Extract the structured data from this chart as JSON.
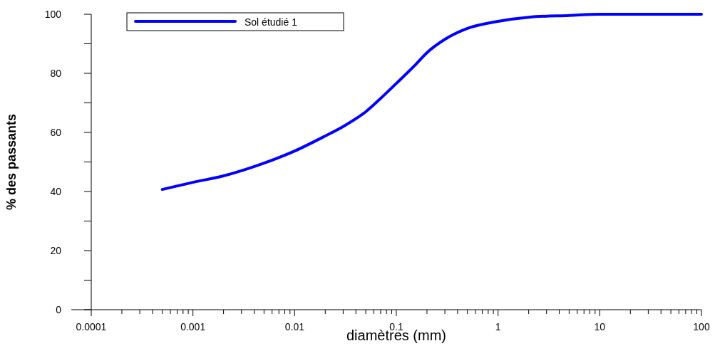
{
  "chart_data": {
    "type": "line",
    "xlabel": "diamètres (mm)",
    "ylabel": "% des passants",
    "log": "x",
    "xlim": [
      0.0001,
      100
    ],
    "xticks": [
      0.0001,
      {
        "value": 0.0002,
        "label": null
      },
      {
        "value": 0.0003,
        "label": null
      },
      {
        "value": 0.0004,
        "label": null
      },
      {
        "value": 0.0005,
        "label": null
      },
      {
        "value": 0.0006,
        "label": null
      },
      {
        "value": 0.0007,
        "label": null
      },
      {
        "value": 0.0008,
        "label": null
      },
      {
        "value": 0.0009,
        "label": null
      },
      0.001,
      {
        "value": 0.002,
        "label": null
      },
      {
        "value": 0.003,
        "label": null
      },
      {
        "value": 0.004,
        "label": null
      },
      {
        "value": 0.005,
        "label": null
      },
      {
        "value": 0.006,
        "label": null
      },
      {
        "value": 0.007,
        "label": null
      },
      {
        "value": 0.008,
        "label": null
      },
      {
        "value": 0.009,
        "label": null
      },
      0.01,
      {
        "value": 0.02,
        "label": null
      },
      {
        "value": 0.03,
        "label": null
      },
      {
        "value": 0.04,
        "label": null
      },
      {
        "value": 0.05,
        "label": null
      },
      {
        "value": 0.06,
        "label": null
      },
      {
        "value": 0.07,
        "label": null
      },
      {
        "value": 0.08,
        "label": null
      },
      {
        "value": 0.09,
        "label": null
      },
      0.1,
      {
        "value": 0.2,
        "label": null
      },
      {
        "value": 0.3,
        "label": null
      },
      {
        "value": 0.4,
        "label": null
      },
      {
        "value": 0.5,
        "label": null
      },
      {
        "value": 0.6,
        "label": null
      },
      {
        "value": 0.7,
        "label": null
      },
      {
        "value": 0.8,
        "label": null
      },
      {
        "value": 0.9,
        "label": null
      },
      1,
      {
        "value": 2,
        "label": null
      },
      {
        "value": 3,
        "label": null
      },
      {
        "value": 4,
        "label": null
      },
      {
        "value": 5,
        "label": null
      },
      {
        "value": 6,
        "label": null
      },
      {
        "value": 7,
        "label": null
      },
      {
        "value": 8,
        "label": null
      },
      {
        "value": 9,
        "label": null
      },
      10,
      {
        "value": 20,
        "label": null
      },
      {
        "value": 30,
        "label": null
      },
      {
        "value": 40,
        "label": null
      },
      {
        "value": 50,
        "label": null
      },
      {
        "value": 60,
        "label": null
      },
      {
        "value": 70,
        "label": null
      },
      {
        "value": 80,
        "label": null
      },
      {
        "value": 90,
        "label": null
      },
      100
    ],
    "ylim": [
      0,
      100
    ],
    "yticks": [
      0,
      {
        "value": 10,
        "label": null
      },
      20,
      {
        "value": 30,
        "label": null
      },
      40,
      {
        "value": 50,
        "label": null
      },
      60,
      {
        "value": 70,
        "label": null
      },
      80,
      {
        "value": 90,
        "label": null
      },
      100
    ],
    "grid": false,
    "legend": "top left",
    "marker": "none",
    "line_style": "solid",
    "x": [
      0.0005,
      0.001,
      0.002,
      0.005,
      0.01,
      0.02,
      0.03,
      0.05,
      0.07,
      0.1,
      0.15,
      0.2,
      0.3,
      0.5,
      1,
      2,
      5,
      10,
      100
    ],
    "series": [
      {
        "name": "Sol étudié 1",
        "color": "#0000ff",
        "values": [
          40.7,
          43.1,
          45.3,
          49.6,
          53.7,
          58.8,
          62,
          67,
          71.5,
          76.6,
          82.5,
          87,
          91.5,
          95.2,
          97.6,
          99,
          99.6,
          100,
          100
        ]
      }
    ]
  }
}
